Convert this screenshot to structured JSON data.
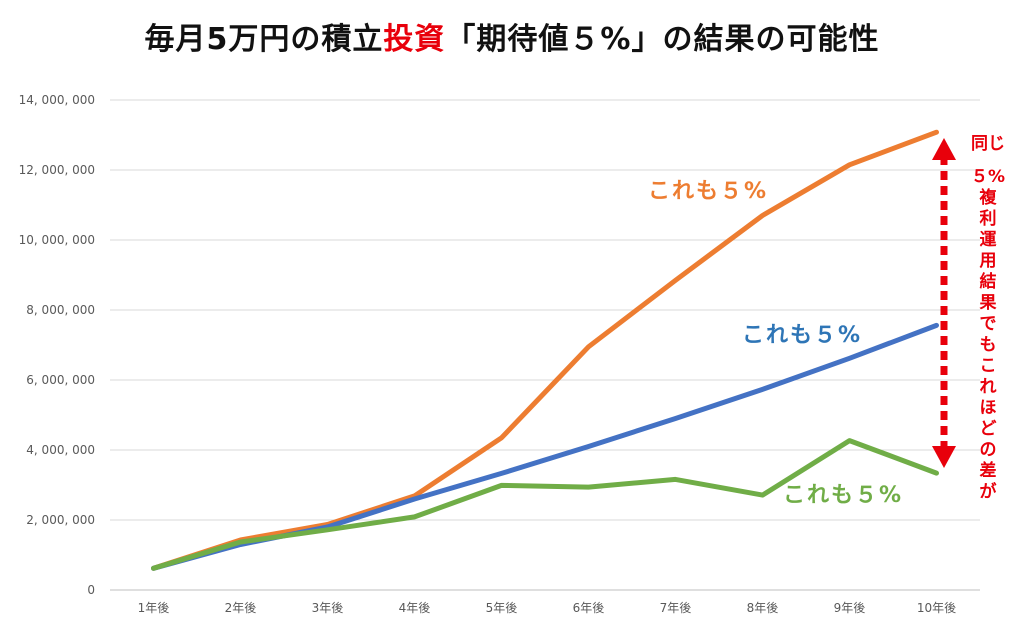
{
  "title": {
    "part1": "毎月5万円の積立",
    "highlight": "投資",
    "part2": "「期待値５%」の結果の可能性"
  },
  "side_note": {
    "line1": "同じ",
    "line2": "５%",
    "line3": "複利運用結果でもこれほどの差が"
  },
  "colors": {
    "orange": "#ed7d31",
    "blue": "#4472c4",
    "green": "#70ad47",
    "accent_red": "#e8000b",
    "annotation_blue": "#2e75b6"
  },
  "chart_data": {
    "type": "line",
    "categories": [
      "1年後",
      "2年後",
      "3年後",
      "4年後",
      "5年後",
      "6年後",
      "7年後",
      "8年後",
      "9年後",
      "10年後"
    ],
    "ylim": [
      0,
      14000000
    ],
    "yticks": [
      0,
      2000000,
      4000000,
      6000000,
      8000000,
      10000000,
      12000000,
      14000000
    ],
    "ytick_labels": [
      "0",
      "2, 000, 000",
      "4, 000, 000",
      "6, 000, 000",
      "8, 000, 000",
      "10, 000, 000",
      "12, 000, 000",
      "14, 000, 000"
    ],
    "grid": true,
    "series": [
      {
        "key": "orange",
        "color": "#ed7d31",
        "values": [
          620000,
          1430000,
          1870000,
          2690000,
          4350000,
          6950000,
          8850000,
          10700000,
          12150000,
          13080000
        ]
      },
      {
        "key": "blue",
        "color": "#4472c4",
        "values": [
          620000,
          1300000,
          1800000,
          2600000,
          3330000,
          4100000,
          4900000,
          5730000,
          6620000,
          7560000
        ]
      },
      {
        "key": "green",
        "color": "#70ad47",
        "values": [
          620000,
          1370000,
          1720000,
          2090000,
          2990000,
          2940000,
          3160000,
          2710000,
          4270000,
          3340000
        ]
      }
    ],
    "annotations": [
      {
        "text": "これも５%",
        "color": "#ed7d31"
      },
      {
        "text": "これも５%",
        "color": "#2e75b6"
      },
      {
        "text": "これも５%",
        "color": "#70ad47"
      }
    ]
  }
}
